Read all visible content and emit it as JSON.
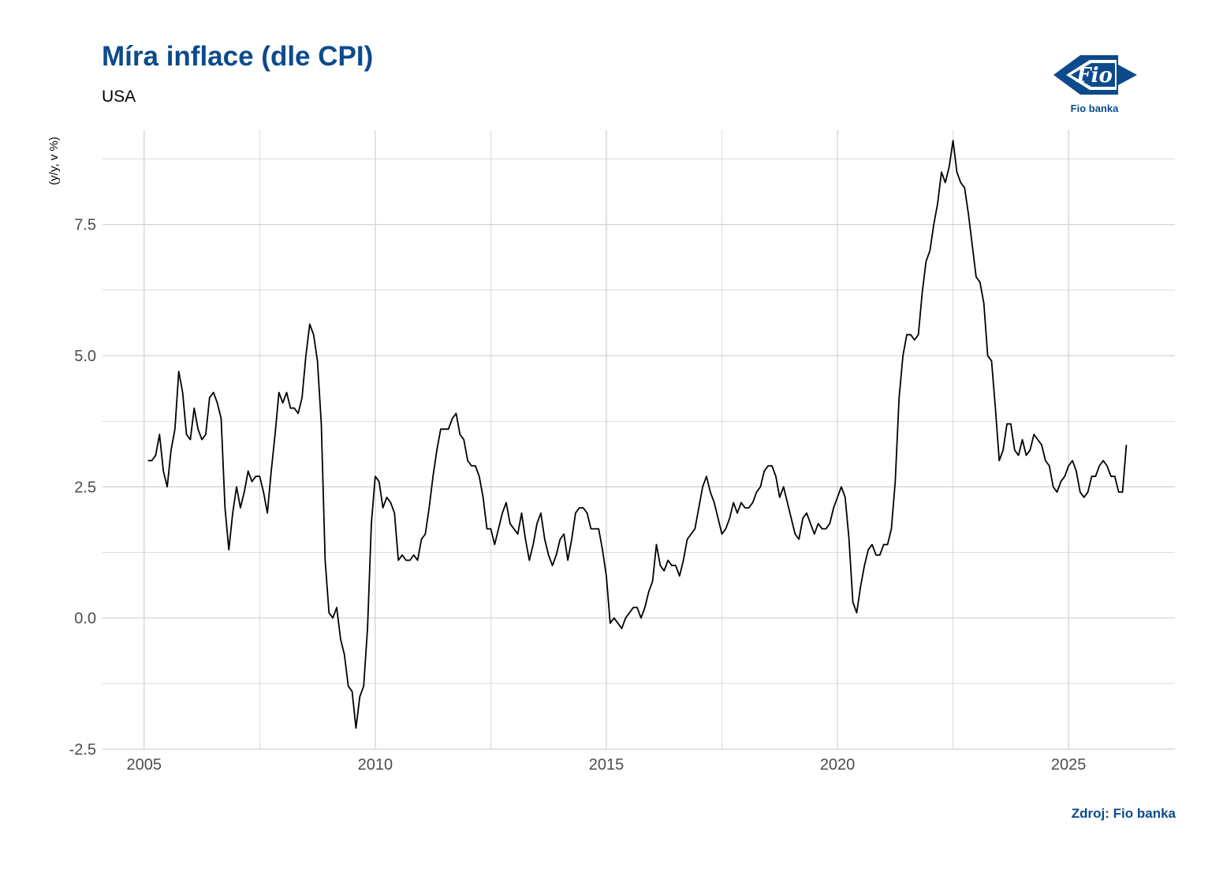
{
  "colors": {
    "brand": "#0c4a8c",
    "line": "#000000",
    "grid": "#d0d0d0",
    "text": "#4d4d4d"
  },
  "logo": {
    "mark_text": "Fio",
    "caption": "Fio banka",
    "icon": "fio-banka-logo"
  },
  "source": "Zdroj: Fio banka",
  "chart_data": {
    "type": "line",
    "title": "Míra inflace (dle CPI)",
    "subtitle": "USA",
    "ylabel": "(y/y, v %)",
    "xlabel": "",
    "xlim": [
      2004.1,
      2027.3
    ],
    "ylim": [
      -2.5,
      9.3
    ],
    "x_ticks": [
      2005,
      2010,
      2015,
      2020,
      2025
    ],
    "x_tick_labels": [
      "2005",
      "2010",
      "2015",
      "2020",
      "2025"
    ],
    "y_ticks": [
      -2.5,
      0,
      2.5,
      5,
      7.5
    ],
    "y_tick_labels": [
      "-2.5",
      "0.0",
      "2.5",
      "5.0",
      "7.5"
    ],
    "grid": true,
    "series": [
      {
        "x_start": "2005-02",
        "frequency": "monthly",
        "values": [
          3.0,
          3.0,
          3.1,
          3.5,
          2.8,
          2.5,
          3.2,
          3.6,
          4.7,
          4.3,
          3.5,
          3.4,
          4.0,
          3.6,
          3.4,
          3.5,
          4.2,
          4.3,
          4.1,
          3.8,
          2.1,
          1.3,
          2.0,
          2.5,
          2.1,
          2.4,
          2.8,
          2.6,
          2.7,
          2.7,
          2.4,
          2.0,
          2.8,
          3.5,
          4.3,
          4.1,
          4.3,
          4.0,
          4.0,
          3.9,
          4.2,
          5.0,
          5.6,
          5.4,
          4.9,
          3.7,
          1.1,
          0.1,
          0.0,
          0.2,
          -0.4,
          -0.7,
          -1.3,
          -1.4,
          -2.1,
          -1.5,
          -1.3,
          -0.2,
          1.8,
          2.7,
          2.6,
          2.1,
          2.3,
          2.2,
          2.0,
          1.1,
          1.2,
          1.1,
          1.1,
          1.2,
          1.1,
          1.5,
          1.6,
          2.1,
          2.7,
          3.2,
          3.6,
          3.6,
          3.6,
          3.8,
          3.9,
          3.5,
          3.4,
          3.0,
          2.9,
          2.9,
          2.7,
          2.3,
          1.7,
          1.7,
          1.4,
          1.7,
          2.0,
          2.2,
          1.8,
          1.7,
          1.6,
          2.0,
          1.5,
          1.1,
          1.4,
          1.8,
          2.0,
          1.5,
          1.2,
          1.0,
          1.2,
          1.5,
          1.6,
          1.1,
          1.5,
          2.0,
          2.1,
          2.1,
          2.0,
          1.7,
          1.7,
          1.7,
          1.3,
          0.8,
          -0.1,
          0.0,
          -0.1,
          -0.2,
          0.0,
          0.1,
          0.2,
          0.2,
          0.0,
          0.2,
          0.5,
          0.7,
          1.4,
          1.0,
          0.9,
          1.1,
          1.0,
          1.0,
          0.8,
          1.1,
          1.5,
          1.6,
          1.7,
          2.1,
          2.5,
          2.7,
          2.4,
          2.2,
          1.9,
          1.6,
          1.7,
          1.9,
          2.2,
          2.0,
          2.2,
          2.1,
          2.1,
          2.2,
          2.4,
          2.5,
          2.8,
          2.9,
          2.9,
          2.7,
          2.3,
          2.5,
          2.2,
          1.9,
          1.6,
          1.5,
          1.9,
          2.0,
          1.8,
          1.6,
          1.8,
          1.7,
          1.7,
          1.8,
          2.1,
          2.3,
          2.5,
          2.3,
          1.5,
          0.3,
          0.1,
          0.6,
          1.0,
          1.3,
          1.4,
          1.2,
          1.2,
          1.4,
          1.4,
          1.7,
          2.6,
          4.2,
          5.0,
          5.4,
          5.4,
          5.3,
          5.4,
          6.2,
          6.8,
          7.0,
          7.5,
          7.9,
          8.5,
          8.3,
          8.6,
          9.1,
          8.5,
          8.3,
          8.2,
          7.7,
          7.1,
          6.5,
          6.4,
          6.0,
          5.0,
          4.9,
          4.0,
          3.0,
          3.2,
          3.7,
          3.7,
          3.2,
          3.1,
          3.4,
          3.1,
          3.2,
          3.5,
          3.4,
          3.3,
          3.0,
          2.9,
          2.5,
          2.4,
          2.6,
          2.7,
          2.9,
          3.0,
          2.8,
          2.4,
          2.3,
          2.4,
          2.7,
          2.7,
          2.9,
          3.0,
          2.9,
          2.7,
          2.7,
          2.4,
          2.4,
          3.3
        ]
      }
    ]
  }
}
